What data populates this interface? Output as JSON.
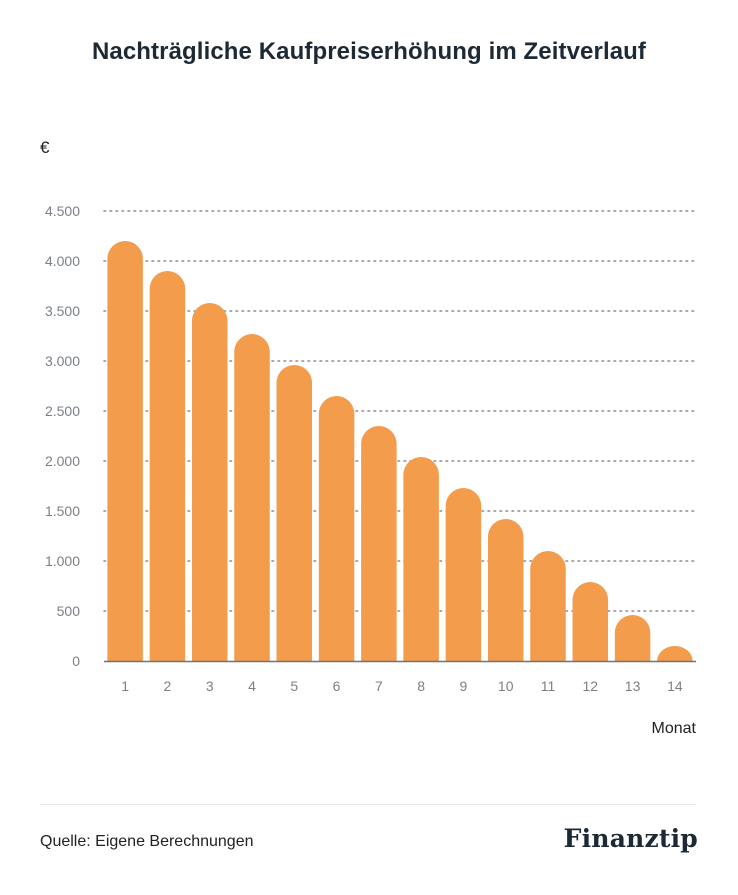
{
  "header": {
    "title": "Nachträgliche Kaufpreiserhöhung im Zeitverlauf"
  },
  "chart_data": {
    "type": "bar",
    "title": "Nachträgliche Kaufpreiserhöhung im Zeitverlauf",
    "ylabel": "€",
    "xlabel": "Monat",
    "categories": [
      "1",
      "2",
      "3",
      "4",
      "5",
      "6",
      "7",
      "8",
      "9",
      "10",
      "11",
      "12",
      "13",
      "14"
    ],
    "values": [
      4200,
      3900,
      3580,
      3270,
      2960,
      2650,
      2350,
      2040,
      1730,
      1420,
      1100,
      790,
      460,
      150
    ],
    "ylim": [
      0,
      4500
    ],
    "yticks": [
      0,
      500,
      1000,
      1500,
      2000,
      2500,
      3000,
      3500,
      4000,
      4500
    ],
    "ytick_labels": [
      "0",
      "500",
      "1.000",
      "1.500",
      "2.000",
      "2.500",
      "3.000",
      "3.500",
      "4.000",
      "4.500"
    ],
    "grid": true,
    "colors": {
      "bar": "#F39C4C",
      "grid": "#8a8f96",
      "axis": "#6b7280",
      "tick_text": "#7b8087"
    }
  },
  "footer": {
    "source": "Quelle: Eigene Berechnungen",
    "brand": "Finanztip"
  }
}
